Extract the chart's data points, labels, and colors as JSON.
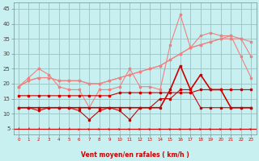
{
  "x": [
    0,
    1,
    2,
    3,
    4,
    5,
    6,
    7,
    8,
    9,
    10,
    11,
    12,
    13,
    14,
    15,
    16,
    17,
    18,
    19,
    20,
    21,
    22,
    23
  ],
  "line1_rafales_light": [
    19,
    22,
    25,
    23,
    19,
    18,
    18,
    12,
    18,
    18,
    19,
    25,
    19,
    19,
    18,
    33,
    43,
    32,
    36,
    37,
    36,
    36,
    29,
    22
  ],
  "line2_smooth_light_upper": [
    19,
    21,
    22,
    22,
    21,
    21,
    21,
    20,
    20,
    21,
    22,
    23,
    24,
    25,
    26,
    28,
    30,
    32,
    33,
    34,
    35,
    36,
    35,
    29
  ],
  "line3_smooth_light_lower": [
    19,
    21,
    22,
    22,
    21,
    21,
    21,
    20,
    20,
    21,
    22,
    23,
    24,
    25,
    26,
    28,
    30,
    32,
    33,
    34,
    35,
    35,
    35,
    34
  ],
  "line4_vent_moyen_dark": [
    12,
    12,
    12,
    12,
    12,
    12,
    12,
    12,
    12,
    12,
    12,
    12,
    12,
    12,
    12,
    18,
    26,
    18,
    23,
    18,
    18,
    12,
    12,
    12
  ],
  "line5_medium_dark": [
    16,
    16,
    16,
    16,
    16,
    16,
    16,
    16,
    16,
    16,
    17,
    17,
    17,
    17,
    17,
    17,
    17,
    17,
    18,
    18,
    18,
    18,
    18,
    18
  ],
  "line6_zigzag_dark": [
    12,
    12,
    11,
    12,
    12,
    12,
    11,
    8,
    11,
    12,
    11,
    8,
    12,
    12,
    15,
    15,
    18,
    18,
    12,
    12,
    12,
    12,
    12,
    12
  ],
  "color_light": "#f08080",
  "color_dark": "#cc0000",
  "bg_color": "#c8f0f0",
  "grid_color": "#a0c8c8",
  "xlabel": "Vent moyen/en rafales ( km/h )",
  "ylabel_ticks": [
    5,
    10,
    15,
    20,
    25,
    30,
    35,
    40,
    45
  ],
  "ylim": [
    3,
    47
  ],
  "xlim": [
    -0.5,
    23.5
  ],
  "arrow_angles_deg": [
    210,
    210,
    210,
    210,
    210,
    225,
    45,
    60,
    60,
    60,
    60,
    60,
    60,
    60,
    60,
    60,
    60,
    60,
    60,
    60,
    60,
    60,
    60,
    60
  ]
}
